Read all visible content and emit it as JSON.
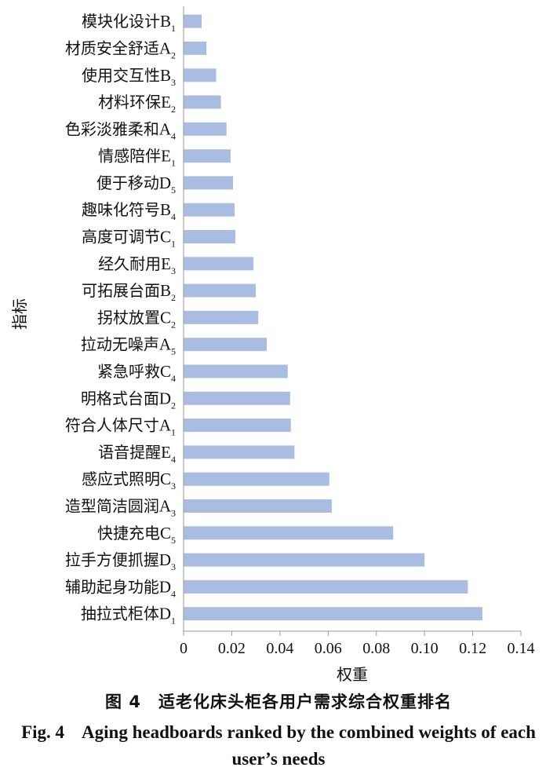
{
  "chart_data": {
    "type": "bar",
    "orientation": "horizontal",
    "categories": [
      {
        "name": "模块化设计",
        "sub": "B",
        "idx": "1"
      },
      {
        "name": "材质安全舒适",
        "sub": "A",
        "idx": "2"
      },
      {
        "name": "使用交互性",
        "sub": "B",
        "idx": "3"
      },
      {
        "name": "材料环保",
        "sub": "E",
        "idx": "2"
      },
      {
        "name": "色彩淡雅柔和",
        "sub": "A",
        "idx": "4"
      },
      {
        "name": "情感陪伴",
        "sub": "E",
        "idx": "1"
      },
      {
        "name": "便于移动",
        "sub": "D",
        "idx": "5"
      },
      {
        "name": "趣味化符号",
        "sub": "B",
        "idx": "4"
      },
      {
        "name": "高度可调节",
        "sub": "C",
        "idx": "1"
      },
      {
        "name": "经久耐用",
        "sub": "E",
        "idx": "3"
      },
      {
        "name": "可拓展台面",
        "sub": "B",
        "idx": "2"
      },
      {
        "name": "拐杖放置",
        "sub": "C",
        "idx": "2"
      },
      {
        "name": "拉动无噪声",
        "sub": "A",
        "idx": "5"
      },
      {
        "name": "紧急呼救",
        "sub": "C",
        "idx": "4"
      },
      {
        "name": "明格式台面",
        "sub": "D",
        "idx": "2"
      },
      {
        "name": "符合人体尺寸",
        "sub": "A",
        "idx": "1"
      },
      {
        "name": "语音提醒",
        "sub": "E",
        "idx": "4"
      },
      {
        "name": "感应式照明",
        "sub": "C",
        "idx": "3"
      },
      {
        "name": "造型简洁圆润",
        "sub": "A",
        "idx": "3"
      },
      {
        "name": "快捷充电",
        "sub": "C",
        "idx": "5"
      },
      {
        "name": "拉手方便抓握",
        "sub": "D",
        "idx": "3"
      },
      {
        "name": "辅助起身功能",
        "sub": "D",
        "idx": "4"
      },
      {
        "name": "抽拉式柜体",
        "sub": "D",
        "idx": "1"
      }
    ],
    "values": [
      0.0075,
      0.0095,
      0.0135,
      0.0155,
      0.0178,
      0.0195,
      0.0205,
      0.0212,
      0.0215,
      0.029,
      0.03,
      0.031,
      0.0345,
      0.0432,
      0.0442,
      0.0445,
      0.046,
      0.0605,
      0.0615,
      0.087,
      0.1,
      0.118,
      0.124
    ],
    "xlim": [
      0,
      0.14
    ],
    "xticks": [
      "0",
      "0.02",
      "0.04",
      "0.06",
      "0.08",
      "0.10",
      "0.12",
      "0.14"
    ],
    "xlabel": "权重",
    "ylabel": "指标",
    "grid": false,
    "bar_color": "#a9bde2",
    "axis_color": "#999999"
  },
  "caption": {
    "cn_num": "图 4",
    "cn_text": "适老化床头柜各用户需求综合权重排名",
    "en_num": "Fig. 4",
    "en_text": "Aging headboards ranked by the combined weights of each user’s needs"
  }
}
